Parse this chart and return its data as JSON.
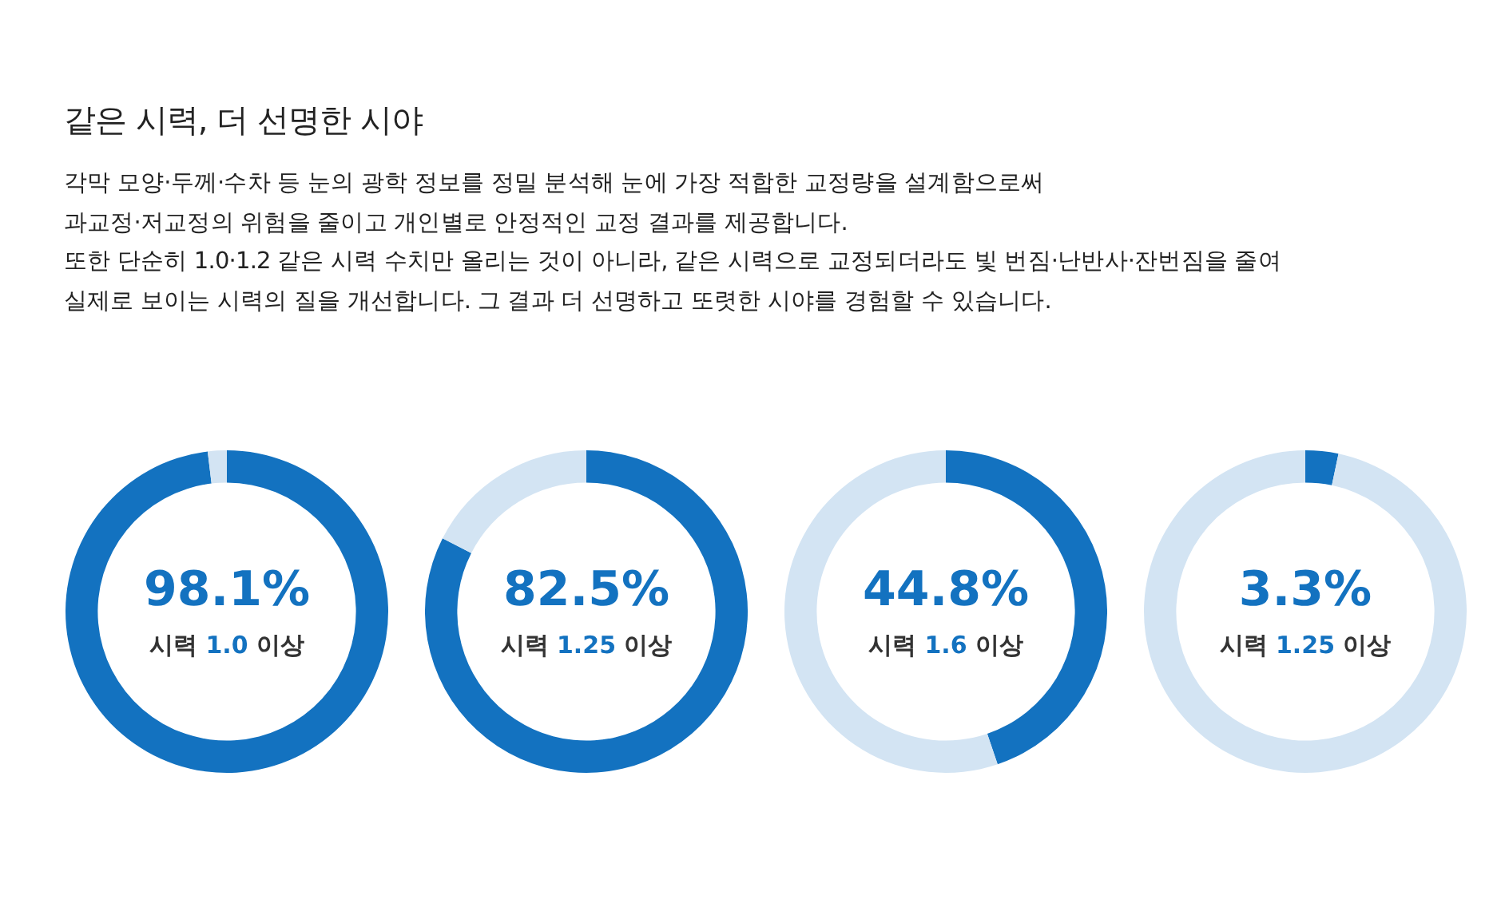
{
  "chart_data": [
    {
      "type": "other",
      "title": "같은 시력, 더 선명한 시야",
      "annotations": [
        "각막 모양·두께·수차 등 눈의 광학 정보를 정밀 분석해 눈에 가장 적합한 교정량을 설계함으로써",
        "과교정·저교정의 위험을 줄이고 개인별로 안정적인 교정 결과를 제공합니다.",
        "또한 단순히 1.0·1.2 같은 시력 수치만 올리는 것이 아니라, 같은 시력으로 교정되더라도 빛 번짐·난반사·잔번짐을 줄여",
        "실제로 보이는 시력의 질을 개선합니다. 그 결과 더 선명하고 또렷한 시야를 경험할 수 있습니다."
      ]
    },
    {
      "type": "donut",
      "categories": [
        "시력 1.0 이상",
        null
      ],
      "values": [
        98.1,
        1.9
      ],
      "colors": [
        "#1372c0",
        "#d3e4f3"
      ],
      "value_labels": [
        "98.1%",
        null
      ]
    },
    {
      "type": "donut",
      "categories": [
        "시력 1.25 이상",
        null
      ],
      "values": [
        82.5,
        17.5
      ],
      "colors": [
        "#1372c0",
        "#d3e4f3"
      ],
      "value_labels": [
        "82.5%",
        null
      ]
    },
    {
      "type": "donut",
      "categories": [
        "시력 1.6 이상",
        null
      ],
      "values": [
        44.8,
        55.2
      ],
      "colors": [
        "#1372c0",
        "#d3e4f3"
      ],
      "value_labels": [
        "44.8%",
        null
      ]
    },
    {
      "type": "donut",
      "categories": [
        "시력 1.25 이상",
        null
      ],
      "values": [
        3.3,
        96.7
      ],
      "colors": [
        "#1372c0",
        "#d3e4f3"
      ],
      "value_labels": [
        "3.3%",
        null
      ]
    }
  ]
}
